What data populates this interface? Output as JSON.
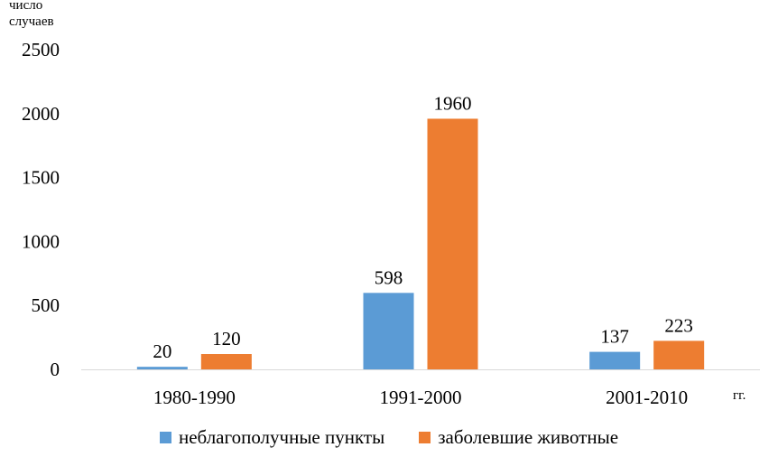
{
  "chart_data": {
    "type": "bar",
    "ylabel": "число\nслучаев",
    "xlabel": "гг.",
    "categories": [
      "1980-1990",
      "1991-2000",
      "2001-2010"
    ],
    "ylim": [
      0,
      2500
    ],
    "yticks": [
      0,
      500,
      1000,
      1500,
      2000,
      2500
    ],
    "grid": false,
    "legend_position": "bottom",
    "series": [
      {
        "name": "неблагополучные пункты",
        "color": "#5b9bd5",
        "values": [
          20,
          598,
          137
        ]
      },
      {
        "name": "заболевшие животные",
        "color": "#ed7d31",
        "values": [
          120,
          1960,
          223
        ]
      }
    ]
  }
}
